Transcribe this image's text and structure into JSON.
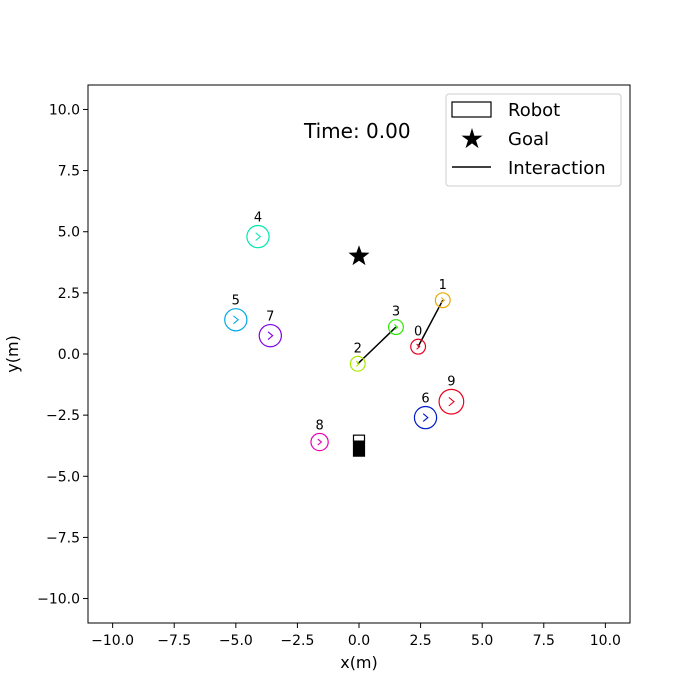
{
  "chart_data": {
    "type": "scatter",
    "xlabel": "x(m)",
    "ylabel": "y(m)",
    "xlim": [
      -11,
      11
    ],
    "ylim": [
      -11,
      11
    ],
    "xticks": [
      -10,
      -7.5,
      -5,
      -2.5,
      0,
      2.5,
      5,
      7.5,
      10
    ],
    "yticks": [
      -10,
      -7.5,
      -5,
      -2.5,
      0,
      2.5,
      5,
      7.5,
      10
    ],
    "xtick_labels": [
      "−10.0",
      "−7.5",
      "−5.0",
      "−2.5",
      "0.0",
      "2.5",
      "5.0",
      "7.5",
      "10.0"
    ],
    "ytick_labels": [
      "−10.0",
      "−7.5",
      "−5.0",
      "−2.5",
      "0.0",
      "2.5",
      "5.0",
      "7.5",
      "10.0"
    ],
    "grid": false,
    "time_label": "Time: 0.00",
    "legend": {
      "placement": "top-right",
      "entries": [
        {
          "label": "Robot",
          "marker": "rectangle"
        },
        {
          "label": "Goal",
          "marker": "star"
        },
        {
          "label": "Interaction",
          "marker": "line"
        }
      ]
    },
    "robot": {
      "x": 0.0,
      "y": -3.85
    },
    "goal": {
      "x": 0.0,
      "y": 4.0
    },
    "agents": [
      {
        "id": "0",
        "x": 2.4,
        "y": 0.3,
        "radius": 0.3,
        "color": "#e8001e"
      },
      {
        "id": "1",
        "x": 3.4,
        "y": 2.2,
        "radius": 0.3,
        "color": "#e8a800"
      },
      {
        "id": "2",
        "x": -0.05,
        "y": -0.4,
        "radius": 0.3,
        "color": "#a8e800"
      },
      {
        "id": "3",
        "x": 1.5,
        "y": 1.1,
        "radius": 0.3,
        "color": "#28e800"
      },
      {
        "id": "4",
        "x": -4.1,
        "y": 4.8,
        "radius": 0.45,
        "color": "#00e8b0"
      },
      {
        "id": "5",
        "x": -5.0,
        "y": 1.4,
        "radius": 0.45,
        "color": "#00a8e8"
      },
      {
        "id": "6",
        "x": 2.7,
        "y": -2.6,
        "radius": 0.45,
        "color": "#0018c8"
      },
      {
        "id": "7",
        "x": -3.6,
        "y": 0.75,
        "radius": 0.45,
        "color": "#8000e8"
      },
      {
        "id": "8",
        "x": -1.6,
        "y": -3.6,
        "radius": 0.35,
        "color": "#e800b8"
      },
      {
        "id": "9",
        "x": 3.75,
        "y": -1.95,
        "radius": 0.5,
        "color": "#e8001e"
      }
    ],
    "interactions": [
      {
        "from": "0",
        "to": "1"
      },
      {
        "from": "2",
        "to": "3"
      }
    ]
  }
}
